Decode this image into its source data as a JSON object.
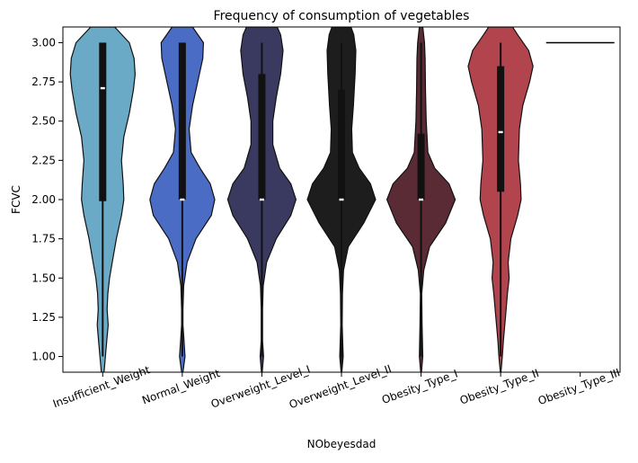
{
  "chart_data": {
    "type": "violin",
    "title": "Frequency of consumption of vegetables",
    "xlabel": "NObeyesdad",
    "ylabel": "FCVC",
    "ylim": [
      0.9,
      3.1
    ],
    "yticks": [
      "1.00",
      "1.25",
      "1.50",
      "1.75",
      "2.00",
      "2.25",
      "2.50",
      "2.75",
      "3.00"
    ],
    "grid": false,
    "categories": [
      "Insufficient_Weight",
      "Normal_Weight",
      "Overweight_Level_I",
      "Overweight_Level_II",
      "Obesity_Type_I",
      "Obesity_Type_II",
      "Obesity_Type_III"
    ],
    "series": [
      {
        "color": "#6aaac6",
        "min": 1.0,
        "q1": 1.99,
        "median": 2.71,
        "q3": 3.0,
        "max": 3.0,
        "density": [
          [
            0.9,
            0.04
          ],
          [
            1.0,
            0.08
          ],
          [
            1.1,
            0.12
          ],
          [
            1.2,
            0.16
          ],
          [
            1.3,
            0.13
          ],
          [
            1.4,
            0.15
          ],
          [
            1.5,
            0.2
          ],
          [
            1.6,
            0.28
          ],
          [
            1.75,
            0.4
          ],
          [
            1.9,
            0.55
          ],
          [
            2.0,
            0.62
          ],
          [
            2.1,
            0.6
          ],
          [
            2.25,
            0.55
          ],
          [
            2.4,
            0.62
          ],
          [
            2.55,
            0.78
          ],
          [
            2.7,
            0.9
          ],
          [
            2.8,
            0.95
          ],
          [
            2.9,
            0.92
          ],
          [
            3.0,
            0.78
          ],
          [
            3.1,
            0.35
          ]
        ]
      },
      {
        "color": "#4a6cc4",
        "min": 1.0,
        "q1": 2.0,
        "median": 2.0,
        "q3": 3.0,
        "max": 3.0,
        "density": [
          [
            0.9,
            0.02
          ],
          [
            1.0,
            0.08
          ],
          [
            1.1,
            0.05
          ],
          [
            1.2,
            0.02
          ],
          [
            1.3,
            0.02
          ],
          [
            1.45,
            0.04
          ],
          [
            1.6,
            0.14
          ],
          [
            1.75,
            0.4
          ],
          [
            1.9,
            0.85
          ],
          [
            2.0,
            0.95
          ],
          [
            2.1,
            0.82
          ],
          [
            2.2,
            0.52
          ],
          [
            2.3,
            0.26
          ],
          [
            2.45,
            0.2
          ],
          [
            2.6,
            0.3
          ],
          [
            2.75,
            0.45
          ],
          [
            2.9,
            0.6
          ],
          [
            3.0,
            0.62
          ],
          [
            3.1,
            0.3
          ]
        ]
      },
      {
        "color": "#3a3a60",
        "min": 1.0,
        "q1": 2.0,
        "median": 2.0,
        "q3": 2.8,
        "max": 3.0,
        "density": [
          [
            0.9,
            0.01
          ],
          [
            1.0,
            0.05
          ],
          [
            1.1,
            0.02
          ],
          [
            1.3,
            0.02
          ],
          [
            1.45,
            0.04
          ],
          [
            1.6,
            0.14
          ],
          [
            1.75,
            0.42
          ],
          [
            1.9,
            0.85
          ],
          [
            2.0,
            1.0
          ],
          [
            2.1,
            0.85
          ],
          [
            2.2,
            0.52
          ],
          [
            2.35,
            0.32
          ],
          [
            2.5,
            0.32
          ],
          [
            2.65,
            0.42
          ],
          [
            2.8,
            0.55
          ],
          [
            2.95,
            0.62
          ],
          [
            3.05,
            0.55
          ],
          [
            3.1,
            0.45
          ]
        ]
      },
      {
        "color": "#1d1d1d",
        "min": 1.0,
        "q1": 2.0,
        "median": 2.0,
        "q3": 2.7,
        "max": 3.0,
        "density": [
          [
            0.9,
            0.01
          ],
          [
            1.0,
            0.05
          ],
          [
            1.2,
            0.02
          ],
          [
            1.4,
            0.03
          ],
          [
            1.55,
            0.06
          ],
          [
            1.7,
            0.2
          ],
          [
            1.85,
            0.65
          ],
          [
            2.0,
            1.0
          ],
          [
            2.1,
            0.85
          ],
          [
            2.2,
            0.52
          ],
          [
            2.3,
            0.32
          ],
          [
            2.45,
            0.3
          ],
          [
            2.6,
            0.35
          ],
          [
            2.8,
            0.4
          ],
          [
            2.95,
            0.42
          ],
          [
            3.05,
            0.36
          ],
          [
            3.1,
            0.28
          ]
        ]
      },
      {
        "color": "#5a2a35",
        "min": 1.0,
        "q1": 2.0,
        "median": 2.0,
        "q3": 2.42,
        "max": 3.0,
        "density": [
          [
            0.9,
            0.01
          ],
          [
            1.0,
            0.05
          ],
          [
            1.2,
            0.03
          ],
          [
            1.4,
            0.02
          ],
          [
            1.55,
            0.08
          ],
          [
            1.7,
            0.25
          ],
          [
            1.85,
            0.72
          ],
          [
            2.0,
            1.0
          ],
          [
            2.1,
            0.82
          ],
          [
            2.2,
            0.4
          ],
          [
            2.3,
            0.2
          ],
          [
            2.5,
            0.15
          ],
          [
            2.7,
            0.13
          ],
          [
            2.9,
            0.12
          ],
          [
            3.0,
            0.1
          ],
          [
            3.1,
            0.05
          ]
        ]
      },
      {
        "color": "#b2444e",
        "min": 1.0,
        "q1": 2.05,
        "median": 2.43,
        "q3": 2.85,
        "max": 3.0,
        "density": [
          [
            0.9,
            0.01
          ],
          [
            1.0,
            0.05
          ],
          [
            1.1,
            0.08
          ],
          [
            1.25,
            0.14
          ],
          [
            1.4,
            0.2
          ],
          [
            1.5,
            0.25
          ],
          [
            1.6,
            0.22
          ],
          [
            1.75,
            0.3
          ],
          [
            1.9,
            0.5
          ],
          [
            2.0,
            0.6
          ],
          [
            2.1,
            0.58
          ],
          [
            2.25,
            0.52
          ],
          [
            2.45,
            0.55
          ],
          [
            2.6,
            0.65
          ],
          [
            2.75,
            0.85
          ],
          [
            2.85,
            0.95
          ],
          [
            2.95,
            0.82
          ],
          [
            3.05,
            0.5
          ],
          [
            3.1,
            0.35
          ]
        ]
      },
      {
        "color": "#000000",
        "constant": 3.0
      }
    ]
  }
}
